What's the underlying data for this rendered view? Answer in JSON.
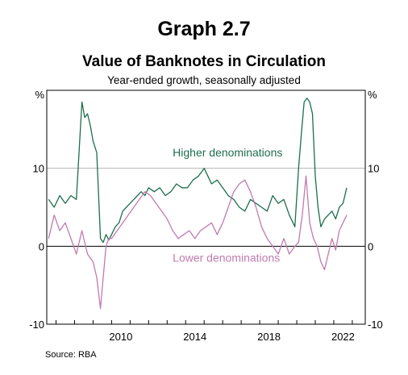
{
  "header": {
    "graph_number": "Graph 2.7",
    "title": "Value of Banknotes in Circulation",
    "subtitle": "Year-ended growth, seasonally adjusted",
    "source": "Source:   RBA"
  },
  "chart_data": {
    "type": "line",
    "xlim": [
      2006.5,
      2023.7
    ],
    "ylim": [
      -10,
      20
    ],
    "x_ticks": [
      2010,
      2014,
      2018,
      2022
    ],
    "y_ticks": [
      -10,
      0,
      10
    ],
    "y_tick_labels": [
      "-10",
      "0",
      "10"
    ],
    "y_unit": "%",
    "grid": "horizontal at 10 and 0",
    "series": [
      {
        "name": "Higher denominations",
        "color": "#1e6e4e",
        "label_at": [
          2013.3,
          11.5
        ],
        "x": [
          2006.6,
          2006.9,
          2007.2,
          2007.5,
          2007.8,
          2008.1,
          2008.4,
          2008.55,
          2008.7,
          2008.85,
          2009.0,
          2009.2,
          2009.4,
          2009.55,
          2009.7,
          2009.85,
          2010.0,
          2010.2,
          2010.4,
          2010.6,
          2010.8,
          2011.0,
          2011.2,
          2011.4,
          2011.6,
          2011.8,
          2012.0,
          2012.3,
          2012.6,
          2012.9,
          2013.2,
          2013.5,
          2013.8,
          2014.1,
          2014.4,
          2014.7,
          2015.0,
          2015.2,
          2015.4,
          2015.7,
          2016.0,
          2016.3,
          2016.6,
          2016.9,
          2017.2,
          2017.5,
          2017.8,
          2018.1,
          2018.4,
          2018.7,
          2019.0,
          2019.3,
          2019.6,
          2019.9,
          2020.1,
          2020.25,
          2020.4,
          2020.55,
          2020.7,
          2020.85,
          2021.0,
          2021.15,
          2021.3,
          2021.5,
          2021.7,
          2021.9,
          2022.1,
          2022.3,
          2022.5,
          2022.7
        ],
        "values": [
          6,
          5,
          6.5,
          5.5,
          6.5,
          6,
          18.5,
          16.5,
          17,
          15.5,
          13.5,
          12,
          1,
          0.5,
          1.5,
          0.8,
          1.5,
          2.5,
          3,
          4.5,
          5,
          5.5,
          6,
          6.5,
          7,
          6.5,
          7.5,
          7,
          7.5,
          6.5,
          7,
          8,
          7.5,
          7.5,
          8.5,
          9,
          10,
          9,
          8,
          8.5,
          7.5,
          6.5,
          6,
          5,
          4.5,
          6,
          5.5,
          5,
          4.5,
          6.5,
          5.5,
          6,
          4,
          2.5,
          10,
          14.5,
          18.5,
          19,
          18.5,
          17,
          9,
          5,
          2.5,
          3.5,
          4,
          4.5,
          3.5,
          5,
          5.5,
          7.5
        ]
      },
      {
        "name": "Lower denominations",
        "color": "#c07bb0",
        "label_at": [
          2013.3,
          -2.0
        ],
        "x": [
          2006.6,
          2006.9,
          2007.2,
          2007.5,
          2007.8,
          2008.1,
          2008.4,
          2008.7,
          2009.0,
          2009.2,
          2009.4,
          2009.55,
          2009.7,
          2009.85,
          2010.0,
          2010.3,
          2010.6,
          2010.9,
          2011.2,
          2011.5,
          2011.8,
          2012.1,
          2012.4,
          2012.7,
          2013.0,
          2013.3,
          2013.6,
          2013.9,
          2014.2,
          2014.5,
          2014.8,
          2015.1,
          2015.4,
          2015.7,
          2016.0,
          2016.3,
          2016.6,
          2016.9,
          2017.2,
          2017.5,
          2017.8,
          2018.1,
          2018.4,
          2018.7,
          2019.0,
          2019.3,
          2019.6,
          2019.9,
          2020.1,
          2020.3,
          2020.5,
          2020.7,
          2020.9,
          2021.1,
          2021.3,
          2021.5,
          2021.7,
          2021.9,
          2022.1,
          2022.3,
          2022.5,
          2022.7
        ],
        "values": [
          1,
          4,
          2,
          3,
          1,
          -1,
          2,
          -1,
          -2,
          -4,
          -8,
          -4,
          0,
          1,
          1,
          2,
          3,
          4,
          5,
          6,
          7,
          6.5,
          5.5,
          4.5,
          3.5,
          2,
          1,
          1.5,
          2,
          1,
          2,
          2.5,
          3,
          1.5,
          3,
          5,
          7,
          8,
          8.5,
          7,
          5,
          2.5,
          1,
          0,
          -1,
          1,
          -1,
          0,
          0.5,
          4,
          9,
          3,
          1,
          0,
          -2,
          -3,
          -1,
          1,
          -0.5,
          2,
          3,
          4
        ]
      }
    ]
  }
}
